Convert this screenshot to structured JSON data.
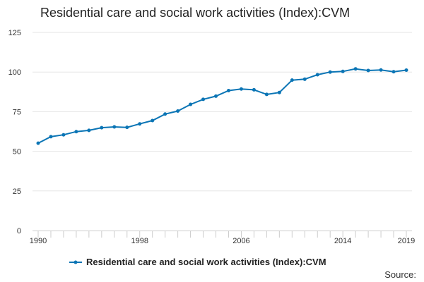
{
  "chart_data": {
    "type": "line",
    "title": "Residential care and social work activities (Index):CVM",
    "x": [
      1990,
      1991,
      1992,
      1993,
      1994,
      1995,
      1996,
      1997,
      1998,
      1999,
      2000,
      2001,
      2002,
      2003,
      2004,
      2005,
      2006,
      2007,
      2008,
      2009,
      2010,
      2011,
      2012,
      2013,
      2014,
      2015,
      2016,
      2017,
      2018,
      2019
    ],
    "series": [
      {
        "name": "Residential care and social work activities (Index):CVM",
        "color": "#0b75b5",
        "values": [
          55.1,
          59.2,
          60.4,
          62.4,
          63.2,
          64.9,
          65.4,
          65.1,
          67.3,
          69.4,
          73.5,
          75.4,
          79.6,
          82.8,
          84.8,
          88.3,
          89.3,
          88.8,
          85.9,
          87.1,
          94.9,
          95.5,
          98.3,
          100.0,
          100.4,
          102.0,
          101.0,
          101.3,
          100.2,
          101.2
        ]
      }
    ],
    "x_tick_labels": [
      "1990",
      "1998",
      "2006",
      "2014",
      "2019"
    ],
    "y_tick_labels": [
      "0",
      "25",
      "50",
      "75",
      "100",
      "125"
    ],
    "xlim": [
      1990,
      2019
    ],
    "ylim": [
      0,
      125
    ],
    "xlabel": "",
    "ylabel": "",
    "grid": "horizontal",
    "legend_position": "bottom",
    "source_label": "Source:"
  }
}
